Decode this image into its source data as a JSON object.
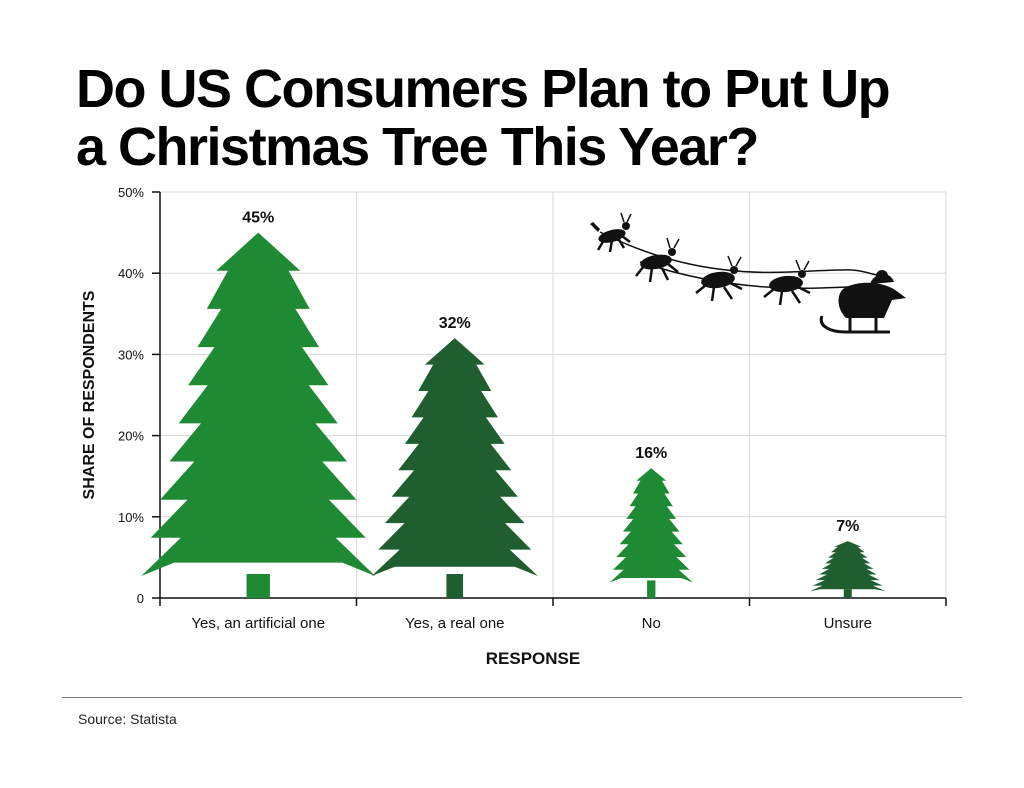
{
  "title_line1": "Do US Consumers Plan to Put Up",
  "title_line2": "a Christmas Tree This Year?",
  "source": "Source: Statista",
  "colors": {
    "tree_light": "#1e8a33",
    "tree_dark": "#1f5e2f",
    "grid": "#d9d9d9",
    "axis": "#111111"
  },
  "chart_data": {
    "type": "bar",
    "categories": [
      "Yes, an artificial one",
      "Yes, a real one",
      "No",
      "Unsure"
    ],
    "values": [
      45,
      32,
      16,
      7
    ],
    "value_labels": [
      "45%",
      "32%",
      "16%",
      "7%"
    ],
    "ylim": [
      0,
      50
    ],
    "yticks": [
      0,
      10,
      20,
      30,
      40,
      50
    ],
    "ytick_labels": [
      "0",
      "10%",
      "20%",
      "30%",
      "40%",
      "50%"
    ],
    "xlabel": "RESPONSE",
    "ylabel": "SHARE OF RESPONDENTS",
    "grid": true,
    "bar_style": "christmas-tree",
    "bar_colors": [
      "#1e8a33",
      "#1f5e2f",
      "#1e8a33",
      "#1f5e2f"
    ],
    "decoration": "santa-sleigh-with-reindeer"
  }
}
